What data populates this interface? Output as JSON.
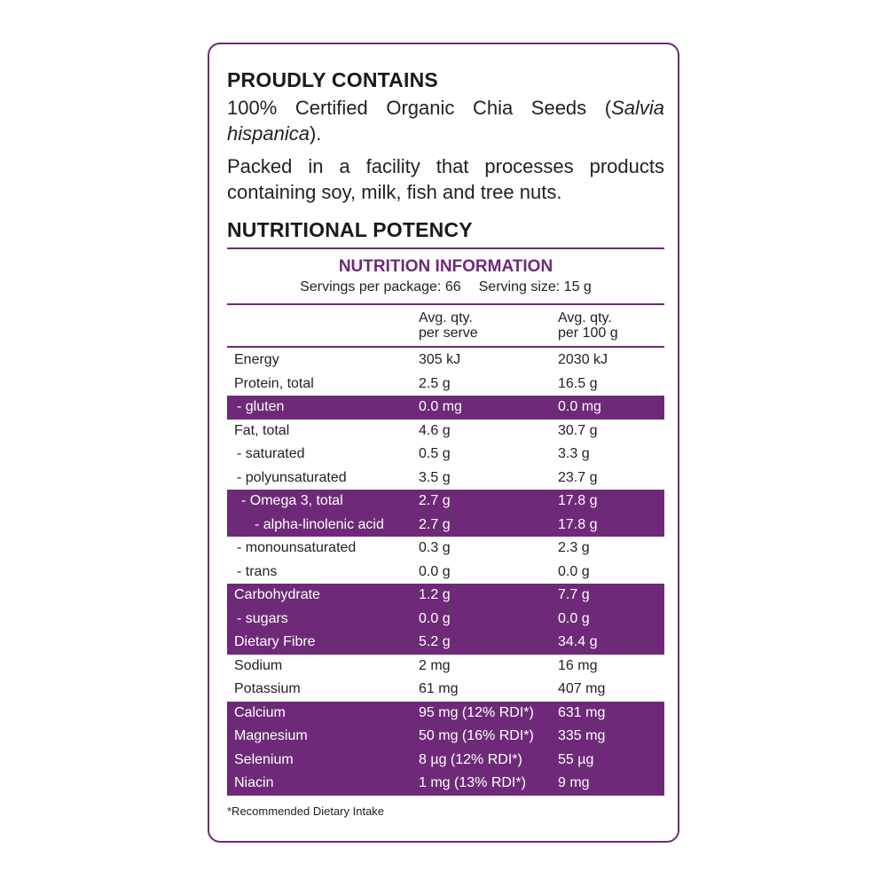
{
  "contains": {
    "heading": "PROUDLY CONTAINS",
    "ingredients_prefix": "100% Certified Organic Chia Seeds (",
    "ingredients_italic": "Salvia hispanica",
    "ingredients_suffix": ").",
    "allergen": "Packed in a facility that processes products containing soy, milk, fish and tree nuts."
  },
  "potency": {
    "heading": "NUTRITIONAL POTENCY"
  },
  "nutrition": {
    "title": "NUTRITION INFORMATION",
    "servings": "Servings per package: 66",
    "serving_size": "Serving size: 15 g",
    "col1_line1": "Avg. qty.",
    "col1_line2": "per serve",
    "col2_line1": "Avg. qty.",
    "col2_line2": "per 100 g",
    "highlight_color": "#6e2a78",
    "rows": [
      {
        "label": "Energy",
        "serve": "305 kJ",
        "per100": "2030 kJ",
        "shaded": false,
        "indent": 0
      },
      {
        "label": "Protein, total",
        "serve": "2.5 g",
        "per100": "16.5 g",
        "shaded": false,
        "indent": 0
      },
      {
        "label": "- gluten",
        "serve": "0.0 mg",
        "per100": "0.0 mg",
        "shaded": true,
        "indent": 1
      },
      {
        "label": "Fat, total",
        "serve": "4.6 g",
        "per100": "30.7 g",
        "shaded": false,
        "indent": 0
      },
      {
        "label": "- saturated",
        "serve": "0.5 g",
        "per100": "3.3 g",
        "shaded": false,
        "indent": 1
      },
      {
        "label": "- polyunsaturated",
        "serve": "3.5 g",
        "per100": "23.7 g",
        "shaded": false,
        "indent": 1
      },
      {
        "label": "- Omega 3, total",
        "serve": "2.7 g",
        "per100": "17.8 g",
        "shaded": true,
        "indent": 2
      },
      {
        "label": "- alpha-linolenic acid",
        "serve": "2.7 g",
        "per100": "17.8 g",
        "shaded": true,
        "indent": 3
      },
      {
        "label": "- monounsaturated",
        "serve": "0.3 g",
        "per100": "2.3 g",
        "shaded": false,
        "indent": 1
      },
      {
        "label": "- trans",
        "serve": "0.0 g",
        "per100": "0.0 g",
        "shaded": false,
        "indent": 1
      },
      {
        "label": "Carbohydrate",
        "serve": "1.2 g",
        "per100": "7.7 g",
        "shaded": true,
        "indent": 0
      },
      {
        "label": "- sugars",
        "serve": "0.0 g",
        "per100": "0.0 g",
        "shaded": true,
        "indent": 1
      },
      {
        "label": "Dietary Fibre",
        "serve": "5.2 g",
        "per100": "34.4 g",
        "shaded": true,
        "indent": 0
      },
      {
        "label": "Sodium",
        "serve": "2 mg",
        "per100": "16 mg",
        "shaded": false,
        "indent": 0
      },
      {
        "label": "Potassium",
        "serve": "61 mg",
        "per100": "407 mg",
        "shaded": false,
        "indent": 0
      },
      {
        "label": "Calcium",
        "serve": "95 mg (12% RDI*)",
        "per100": "631 mg",
        "shaded": true,
        "indent": 0
      },
      {
        "label": "Magnesium",
        "serve": "50 mg (16% RDI*)",
        "per100": "335 mg",
        "shaded": true,
        "indent": 0
      },
      {
        "label": "Selenium",
        "serve": "8 µg (12% RDI*)",
        "per100": "55 µg",
        "shaded": true,
        "indent": 0
      },
      {
        "label": "Niacin",
        "serve": "1 mg (13% RDI*)",
        "per100": "9 mg",
        "shaded": true,
        "indent": 0
      }
    ],
    "footnote": "*Recommended Dietary Intake"
  }
}
